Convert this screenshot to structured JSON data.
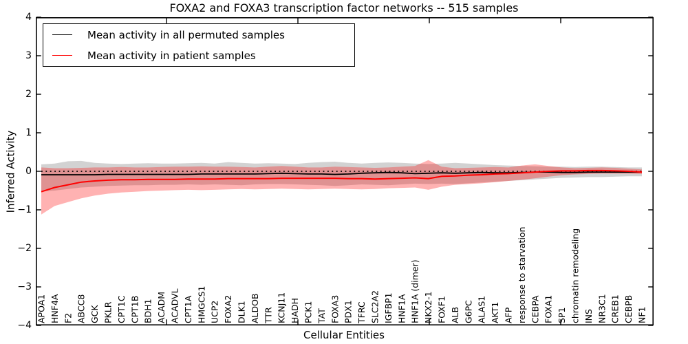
{
  "title": "FOXA2 and FOXA3 transcription factor networks -- 515 samples",
  "legend": {
    "items": [
      {
        "label": "Mean activity in all permuted samples",
        "color": "#000000"
      },
      {
        "label": "Mean activity in patient samples",
        "color": "#ff0000"
      }
    ]
  },
  "chart_data": {
    "type": "line",
    "title": "FOXA2 and FOXA3 transcription factor networks -- 515 samples",
    "xlabel": "Cellular Entities",
    "ylabel": "Inferred Activity",
    "ylim": [
      -4,
      4
    ],
    "yticks": [
      4,
      3,
      2,
      1,
      0,
      -1,
      -2,
      -3,
      -4
    ],
    "grid": false,
    "legend_position": "upper left",
    "categories": [
      "APOA1",
      "HNF4A",
      "F2",
      "ABCC8",
      "GCK",
      "PKLR",
      "CPT1C",
      "CPT1B",
      "BDH1",
      "ACADM",
      "ACADVL",
      "CPT1A",
      "HMGCS1",
      "UCP2",
      "FOXA2",
      "DLK1",
      "ALDOB",
      "TTR",
      "KCNJ11",
      "HADH",
      "PCK1",
      "TAT",
      "FOXA3",
      "PDX1",
      "TFRC",
      "SLC2A2",
      "IGFBP1",
      "HNF1A",
      "HNF1A (dimer)",
      "NKX2-1",
      "FOXF1",
      "ALB",
      "G6PC",
      "ALAS1",
      "AKT1",
      "AFP",
      "response to starvation",
      "CEBPA",
      "FOXA1",
      "SP1",
      "chromatin remodeling",
      "INS",
      "NR3C1",
      "CREB1",
      "CEBPB",
      "NF1"
    ],
    "reference_line": {
      "value": 0.0,
      "style": "dotted",
      "color": "#000000"
    },
    "series": [
      {
        "name": "Mean activity in all permuted samples",
        "color": "#000000",
        "style": "solid",
        "values": [
          -0.09,
          -0.09,
          -0.09,
          -0.09,
          -0.09,
          -0.08,
          -0.08,
          -0.08,
          -0.08,
          -0.08,
          -0.08,
          -0.08,
          -0.07,
          -0.07,
          -0.07,
          -0.07,
          -0.07,
          -0.06,
          -0.05,
          -0.06,
          -0.07,
          -0.07,
          -0.08,
          -0.07,
          -0.05,
          -0.04,
          -0.03,
          -0.04,
          -0.06,
          -0.05,
          -0.04,
          -0.05,
          -0.04,
          -0.03,
          -0.04,
          -0.04,
          -0.03,
          -0.02,
          -0.02,
          -0.03,
          -0.03,
          -0.02,
          -0.02,
          -0.02,
          -0.02,
          -0.02
        ]
      },
      {
        "name": "Mean activity in patient samples",
        "color": "#ff0000",
        "style": "solid",
        "values": [
          -0.53,
          -0.42,
          -0.35,
          -0.28,
          -0.25,
          -0.23,
          -0.22,
          -0.22,
          -0.21,
          -0.21,
          -0.21,
          -0.2,
          -0.2,
          -0.2,
          -0.19,
          -0.19,
          -0.19,
          -0.19,
          -0.18,
          -0.18,
          -0.18,
          -0.18,
          -0.18,
          -0.19,
          -0.19,
          -0.2,
          -0.19,
          -0.18,
          -0.17,
          -0.19,
          -0.13,
          -0.12,
          -0.1,
          -0.09,
          -0.07,
          -0.06,
          -0.04,
          -0.02,
          0.0,
          0.01,
          0.01,
          0.02,
          0.02,
          0.01,
          0.0,
          -0.02
        ]
      }
    ],
    "bands": [
      {
        "name": "permuted samples range",
        "color": "#8a8a8a",
        "opacity": 0.38,
        "upper": [
          0.18,
          0.2,
          0.26,
          0.27,
          0.22,
          0.2,
          0.19,
          0.2,
          0.21,
          0.2,
          0.2,
          0.21,
          0.22,
          0.2,
          0.24,
          0.22,
          0.2,
          0.21,
          0.2,
          0.19,
          0.22,
          0.24,
          0.25,
          0.22,
          0.2,
          0.22,
          0.23,
          0.22,
          0.2,
          0.19,
          0.2,
          0.22,
          0.2,
          0.18,
          0.16,
          0.15,
          0.14,
          0.13,
          0.12,
          0.12,
          0.11,
          0.12,
          0.12,
          0.11,
          0.1,
          0.1
        ],
        "lower": [
          -0.52,
          -0.5,
          -0.46,
          -0.42,
          -0.4,
          -0.38,
          -0.37,
          -0.36,
          -0.36,
          -0.35,
          -0.35,
          -0.34,
          -0.35,
          -0.34,
          -0.35,
          -0.36,
          -0.34,
          -0.33,
          -0.33,
          -0.34,
          -0.35,
          -0.36,
          -0.38,
          -0.36,
          -0.34,
          -0.35,
          -0.36,
          -0.34,
          -0.32,
          -0.33,
          -0.32,
          -0.33,
          -0.31,
          -0.29,
          -0.27,
          -0.25,
          -0.23,
          -0.21,
          -0.19,
          -0.17,
          -0.16,
          -0.15,
          -0.15,
          -0.14,
          -0.13,
          -0.13
        ]
      },
      {
        "name": "patient samples range",
        "color": "#ff0000",
        "opacity": 0.3,
        "upper": [
          0.1,
          0.08,
          0.08,
          0.09,
          0.1,
          0.1,
          0.11,
          0.1,
          0.1,
          0.11,
          0.12,
          0.12,
          0.13,
          0.12,
          0.12,
          0.11,
          0.1,
          0.12,
          0.14,
          0.12,
          0.1,
          0.1,
          0.12,
          0.11,
          0.1,
          0.09,
          0.1,
          0.12,
          0.14,
          0.29,
          0.12,
          0.08,
          0.09,
          0.1,
          0.11,
          0.1,
          0.15,
          0.18,
          0.14,
          0.1,
          0.08,
          0.09,
          0.1,
          0.09,
          0.07,
          0.05
        ],
        "lower": [
          -1.12,
          -0.9,
          -0.8,
          -0.7,
          -0.63,
          -0.58,
          -0.55,
          -0.53,
          -0.51,
          -0.5,
          -0.49,
          -0.48,
          -0.49,
          -0.48,
          -0.47,
          -0.46,
          -0.47,
          -0.46,
          -0.45,
          -0.46,
          -0.47,
          -0.46,
          -0.45,
          -0.46,
          -0.47,
          -0.46,
          -0.44,
          -0.43,
          -0.42,
          -0.48,
          -0.4,
          -0.35,
          -0.33,
          -0.31,
          -0.28,
          -0.25,
          -0.22,
          -0.18,
          -0.14,
          -0.1,
          -0.08,
          -0.07,
          -0.06,
          -0.06,
          -0.06,
          -0.07
        ]
      }
    ]
  }
}
